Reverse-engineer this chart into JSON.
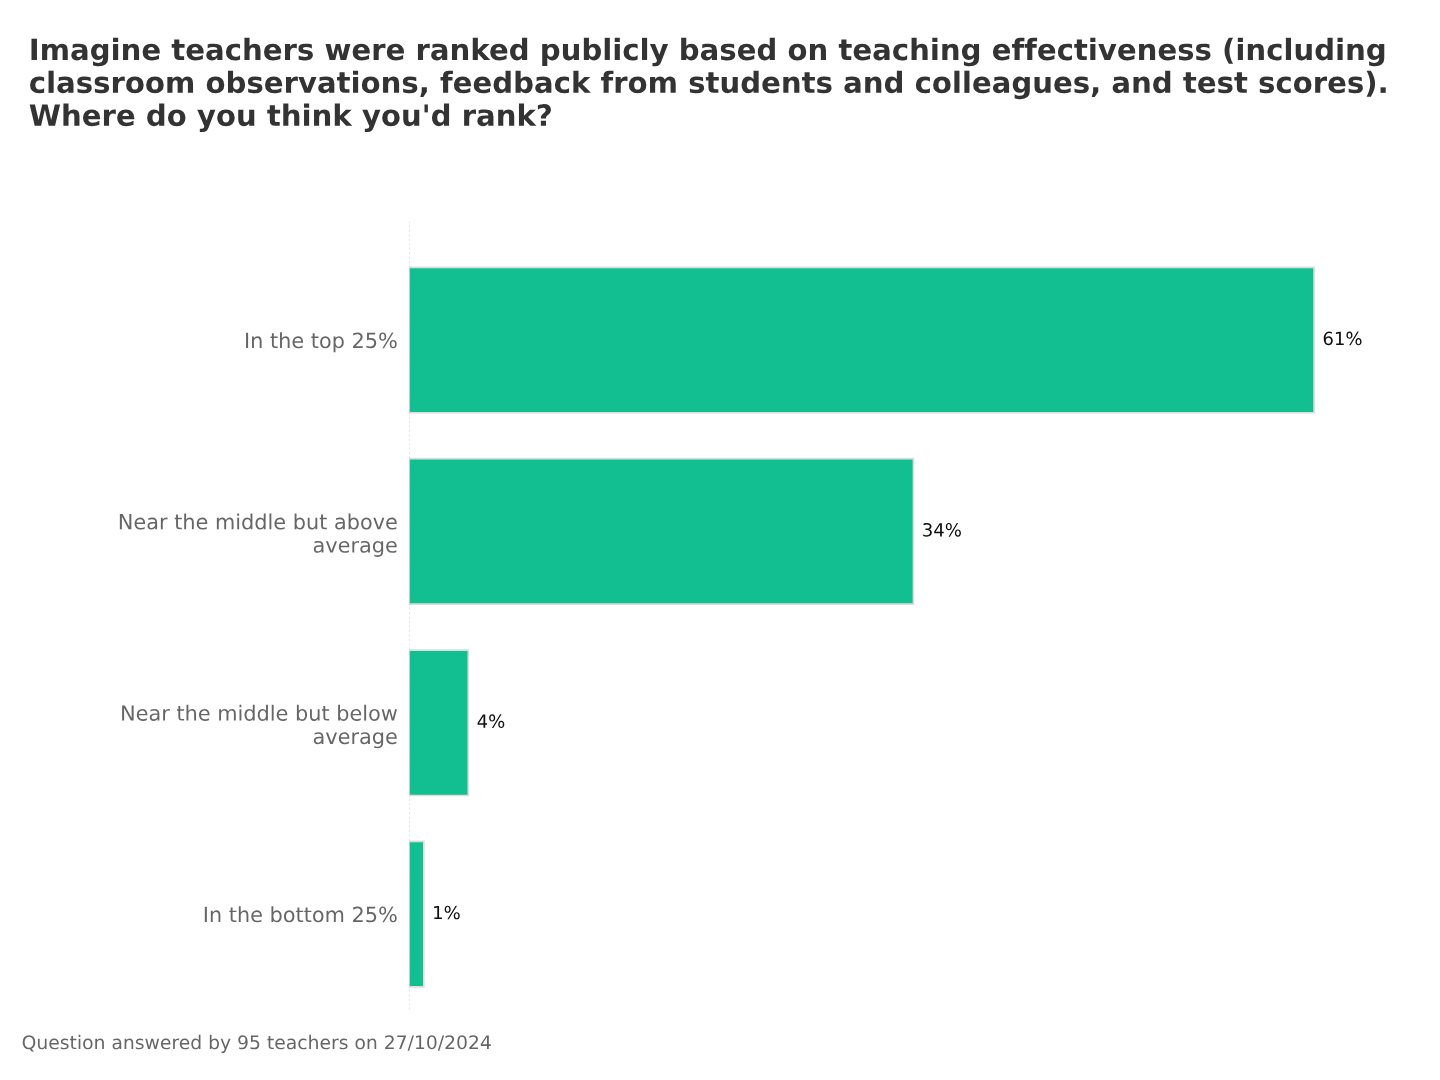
{
  "chart_data": {
    "type": "bar",
    "orientation": "horizontal",
    "title": "Imagine teachers were ranked publicly based on teaching effectiveness (including classroom observations, feedback from students and colleagues, and test scores). Where do you think you'd rank?",
    "categories": [
      "In the top 25%",
      "Near the middle but above\naverage",
      "Near the middle but below\naverage",
      "In the bottom 25%"
    ],
    "values": [
      61,
      34,
      4,
      1
    ],
    "value_labels": [
      "61%",
      "34%",
      "4%",
      "1%"
    ],
    "color": "#12bf90",
    "annotations": [
      "Question answered by 95 teachers on 27/10/2024"
    ]
  }
}
